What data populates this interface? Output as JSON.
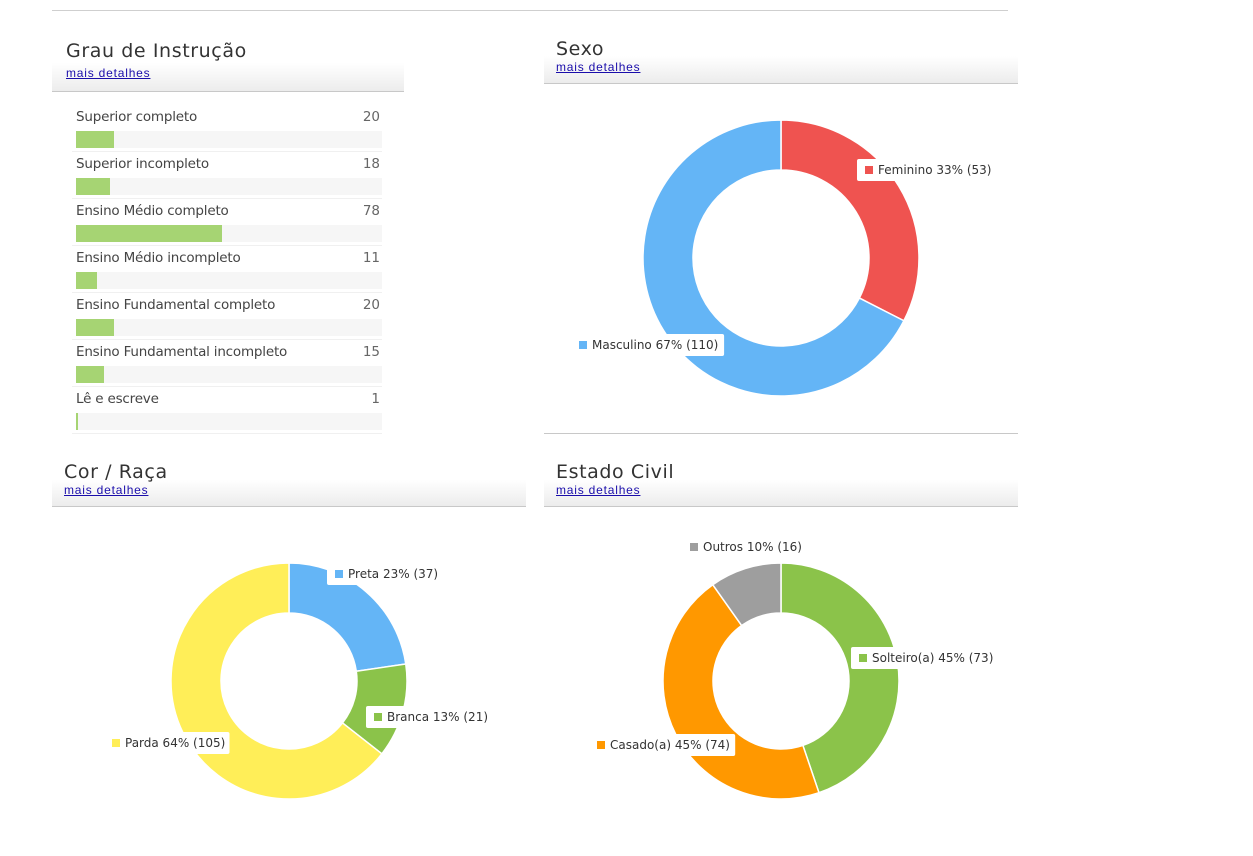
{
  "panels": {
    "instrucao": {
      "title": "Grau de Instrução",
      "link": "mais detalhes"
    },
    "sexo": {
      "title": "Sexo",
      "link": "mais detalhes"
    },
    "cor": {
      "title": "Cor / Raça",
      "link": "mais detalhes"
    },
    "civil": {
      "title": "Estado Civil",
      "link": "mais detalhes"
    }
  },
  "chart_data": [
    {
      "type": "bar",
      "orientation": "horizontal",
      "categories": [
        "Superior completo",
        "Superior incompleto",
        "Ensino Médio completo",
        "Ensino Médio incompleto",
        "Ensino Fundamental completo",
        "Ensino Fundamental incompleto",
        "Lê e escreve"
      ],
      "values": [
        20,
        18,
        78,
        11,
        20,
        15,
        1
      ],
      "max": 163,
      "color": "#a6d473"
    },
    {
      "type": "pie",
      "donut": true,
      "slices": [
        {
          "label": "Feminino 33% (53)",
          "value": 53,
          "color": "#ef5350"
        },
        {
          "label": "Masculino 67% (110)",
          "value": 110,
          "color": "#64b5f6"
        }
      ]
    },
    {
      "type": "pie",
      "donut": true,
      "slices": [
        {
          "label": "Preta 23% (37)",
          "value": 37,
          "color": "#64b5f6"
        },
        {
          "label": "Branca 13% (21)",
          "value": 21,
          "color": "#8bc34a"
        },
        {
          "label": "Parda 64% (105)",
          "value": 105,
          "color": "#ffee58"
        }
      ]
    },
    {
      "type": "pie",
      "donut": true,
      "slices": [
        {
          "label": "Solteiro(a) 45% (73)",
          "value": 73,
          "color": "#8bc34a"
        },
        {
          "label": "Casado(a) 45% (74)",
          "value": 74,
          "color": "#ff9800"
        },
        {
          "label": "Outros 10% (16)",
          "value": 16,
          "color": "#9e9e9e"
        }
      ]
    }
  ]
}
